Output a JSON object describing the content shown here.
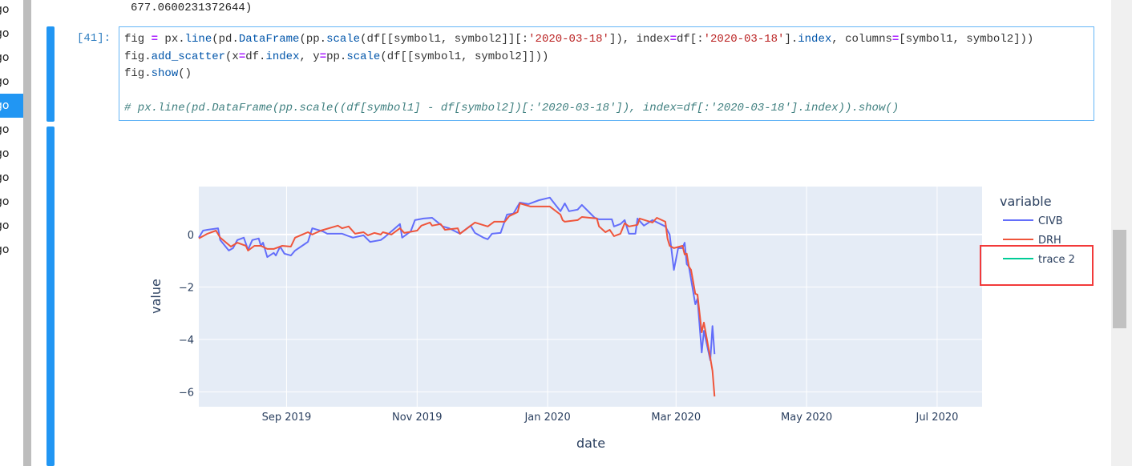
{
  "file_list": {
    "items": [
      "go",
      "go",
      "go",
      "go",
      "go",
      "go",
      "go",
      "go",
      "go",
      "go",
      "go"
    ],
    "selected_index": 4
  },
  "previous_output": "677.0600231372644)",
  "cell": {
    "prompt": "[41]:",
    "code_lines": [
      [
        [
          "fig ",
          ""
        ],
        [
          "=",
          "op"
        ],
        [
          " px.",
          ""
        ],
        [
          "line",
          "fn"
        ],
        [
          "(pd.",
          ""
        ],
        [
          "DataFrame",
          "fn"
        ],
        [
          "(pp.",
          ""
        ],
        [
          "scale",
          "fn"
        ],
        [
          "(df[[symbol1, symbol2]][:",
          ""
        ],
        [
          "'2020-03-18'",
          "str"
        ],
        [
          "]), index",
          ""
        ],
        [
          "=",
          "op"
        ],
        [
          "df[:",
          ""
        ],
        [
          "'2020-03-18'",
          "str"
        ],
        [
          "].",
          ""
        ],
        [
          "index",
          "fn"
        ],
        [
          ", columns",
          ""
        ],
        [
          "=",
          "op"
        ],
        [
          "[symbol1, symbol2]))",
          ""
        ]
      ],
      [
        [
          "fig.",
          ""
        ],
        [
          "add_scatter",
          "fn"
        ],
        [
          "(x",
          ""
        ],
        [
          "=",
          "op"
        ],
        [
          "df.",
          ""
        ],
        [
          "index",
          "fn"
        ],
        [
          ", y",
          ""
        ],
        [
          "=",
          "op"
        ],
        [
          "pp.",
          ""
        ],
        [
          "scale",
          "fn"
        ],
        [
          "(df[[symbol1, symbol2]]))",
          ""
        ]
      ],
      [
        [
          "fig.",
          ""
        ],
        [
          "show",
          "fn"
        ],
        [
          "()",
          ""
        ]
      ],
      [],
      [
        [
          "# px.line(pd.DataFrame(pp.scale((df[symbol1] - df[symbol2])[:'2020-03-18']), index=df[:'2020-03-18'].index)).show()",
          "cm"
        ]
      ]
    ]
  },
  "chart_data": {
    "type": "line",
    "xlabel": "date",
    "ylabel": "value",
    "xlim": [
      "2019-07-22",
      "2020-07-22"
    ],
    "ylim": [
      -6.57,
      1.83
    ],
    "x_ticks": [
      {
        "date": "2019-09-01",
        "label": "Sep 2019"
      },
      {
        "date": "2019-11-01",
        "label": "Nov 2019"
      },
      {
        "date": "2020-01-01",
        "label": "Jan 2020"
      },
      {
        "date": "2020-03-01",
        "label": "Mar 2020"
      },
      {
        "date": "2020-05-01",
        "label": "May 2020"
      },
      {
        "date": "2020-07-01",
        "label": "Jul 2020"
      }
    ],
    "y_ticks": [
      {
        "value": 0,
        "label": "0"
      },
      {
        "value": -2,
        "label": "−2"
      },
      {
        "value": -4,
        "label": "−4"
      },
      {
        "value": -6,
        "label": "−6"
      }
    ],
    "grid": true,
    "plot_bgcolor": "#e5ecf6",
    "legend": {
      "title": "variable",
      "placement": "right"
    },
    "series": [
      {
        "name": "CIVB",
        "color": "#636efa",
        "points": [
          [
            "2019-07-22",
            -0.12
          ],
          [
            "2019-07-24",
            0.15
          ],
          [
            "2019-07-26",
            0.18
          ],
          [
            "2019-07-31",
            0.24
          ],
          [
            "2019-08-01",
            -0.21
          ],
          [
            "2019-08-05",
            -0.61
          ],
          [
            "2019-08-07",
            -0.52
          ],
          [
            "2019-08-09",
            -0.21
          ],
          [
            "2019-08-12",
            -0.12
          ],
          [
            "2019-08-14",
            -0.58
          ],
          [
            "2019-08-16",
            -0.21
          ],
          [
            "2019-08-19",
            -0.15
          ],
          [
            "2019-08-20",
            -0.43
          ],
          [
            "2019-08-21",
            -0.31
          ],
          [
            "2019-08-23",
            -0.86
          ],
          [
            "2019-08-26",
            -0.7
          ],
          [
            "2019-08-27",
            -0.8
          ],
          [
            "2019-08-29",
            -0.46
          ],
          [
            "2019-08-31",
            -0.73
          ],
          [
            "2019-09-03",
            -0.8
          ],
          [
            "2019-09-05",
            -0.61
          ],
          [
            "2019-09-11",
            -0.28
          ],
          [
            "2019-09-13",
            0.24
          ],
          [
            "2019-09-18",
            0.12
          ],
          [
            "2019-09-20",
            0.03
          ],
          [
            "2019-09-25",
            0.03
          ],
          [
            "2019-09-27",
            0.03
          ],
          [
            "2019-10-02",
            -0.12
          ],
          [
            "2019-10-07",
            -0.03
          ],
          [
            "2019-10-10",
            -0.28
          ],
          [
            "2019-10-15",
            -0.21
          ],
          [
            "2019-10-17",
            -0.09
          ],
          [
            "2019-10-24",
            0.4
          ],
          [
            "2019-10-25",
            -0.12
          ],
          [
            "2019-10-29",
            0.12
          ],
          [
            "2019-10-31",
            0.55
          ],
          [
            "2019-11-04",
            0.61
          ],
          [
            "2019-11-08",
            0.64
          ],
          [
            "2019-11-13",
            0.31
          ],
          [
            "2019-11-16",
            0.24
          ],
          [
            "2019-11-21",
            0.03
          ],
          [
            "2019-11-26",
            0.34
          ],
          [
            "2019-11-28",
            0.06
          ],
          [
            "2019-12-02",
            -0.12
          ],
          [
            "2019-12-04",
            -0.18
          ],
          [
            "2019-12-06",
            0.03
          ],
          [
            "2019-12-10",
            0.06
          ],
          [
            "2019-12-13",
            0.76
          ],
          [
            "2019-12-16",
            0.8
          ],
          [
            "2019-12-19",
            1.22
          ],
          [
            "2019-12-23",
            1.16
          ],
          [
            "2019-12-28",
            1.31
          ],
          [
            "2020-01-02",
            1.41
          ],
          [
            "2020-01-07",
            0.89
          ],
          [
            "2020-01-09",
            1.19
          ],
          [
            "2020-01-11",
            0.89
          ],
          [
            "2020-01-15",
            0.95
          ],
          [
            "2020-01-17",
            1.13
          ],
          [
            "2020-01-23",
            0.64
          ],
          [
            "2020-01-25",
            0.58
          ],
          [
            "2020-01-31",
            0.58
          ],
          [
            "2020-02-01",
            0.31
          ],
          [
            "2020-02-04",
            0.4
          ],
          [
            "2020-02-06",
            0.55
          ],
          [
            "2020-02-08",
            0.03
          ],
          [
            "2020-02-11",
            0.03
          ],
          [
            "2020-02-12",
            0.61
          ],
          [
            "2020-02-15",
            0.34
          ],
          [
            "2020-02-19",
            0.55
          ],
          [
            "2020-02-25",
            0.31
          ],
          [
            "2020-02-27",
            0.0
          ],
          [
            "2020-02-29",
            -1.35
          ],
          [
            "2020-03-02",
            -0.52
          ],
          [
            "2020-03-04",
            -0.52
          ],
          [
            "2020-03-05",
            -0.31
          ],
          [
            "2020-03-06",
            -1.13
          ],
          [
            "2020-03-07",
            -1.22
          ],
          [
            "2020-03-10",
            -2.66
          ],
          [
            "2020-03-11",
            -2.45
          ],
          [
            "2020-03-13",
            -4.5
          ],
          [
            "2020-03-14",
            -3.67
          ],
          [
            "2020-03-17",
            -4.8
          ],
          [
            "2020-03-18",
            -3.49
          ],
          [
            "2020-03-19",
            -4.56
          ]
        ]
      },
      {
        "name": "DRH",
        "color": "#ef553b",
        "points": [
          [
            "2019-07-22",
            -0.15
          ],
          [
            "2019-07-26",
            0.03
          ],
          [
            "2019-07-30",
            0.15
          ],
          [
            "2019-08-01",
            -0.12
          ],
          [
            "2019-08-06",
            -0.46
          ],
          [
            "2019-08-09",
            -0.31
          ],
          [
            "2019-08-13",
            -0.43
          ],
          [
            "2019-08-14",
            -0.61
          ],
          [
            "2019-08-17",
            -0.43
          ],
          [
            "2019-08-20",
            -0.43
          ],
          [
            "2019-08-23",
            -0.55
          ],
          [
            "2019-08-26",
            -0.55
          ],
          [
            "2019-08-30",
            -0.43
          ],
          [
            "2019-09-03",
            -0.46
          ],
          [
            "2019-09-05",
            -0.12
          ],
          [
            "2019-09-11",
            0.09
          ],
          [
            "2019-09-13",
            0.0
          ],
          [
            "2019-09-17",
            0.15
          ],
          [
            "2019-09-25",
            0.34
          ],
          [
            "2019-09-27",
            0.24
          ],
          [
            "2019-09-30",
            0.31
          ],
          [
            "2019-10-03",
            0.03
          ],
          [
            "2019-10-07",
            0.09
          ],
          [
            "2019-10-09",
            -0.03
          ],
          [
            "2019-10-12",
            0.06
          ],
          [
            "2019-10-15",
            0.0
          ],
          [
            "2019-10-16",
            0.09
          ],
          [
            "2019-10-20",
            0.0
          ],
          [
            "2019-10-24",
            0.24
          ],
          [
            "2019-10-26",
            0.06
          ],
          [
            "2019-11-01",
            0.15
          ],
          [
            "2019-11-03",
            0.34
          ],
          [
            "2019-11-07",
            0.46
          ],
          [
            "2019-11-08",
            0.34
          ],
          [
            "2019-11-12",
            0.4
          ],
          [
            "2019-11-14",
            0.18
          ],
          [
            "2019-11-20",
            0.24
          ],
          [
            "2019-11-21",
            0.03
          ],
          [
            "2019-11-28",
            0.46
          ],
          [
            "2019-12-04",
            0.31
          ],
          [
            "2019-12-07",
            0.49
          ],
          [
            "2019-12-12",
            0.49
          ],
          [
            "2019-12-14",
            0.7
          ],
          [
            "2019-12-18",
            0.86
          ],
          [
            "2019-12-19",
            1.19
          ],
          [
            "2019-12-24",
            1.07
          ],
          [
            "2019-12-28",
            1.07
          ],
          [
            "2020-01-02",
            1.07
          ],
          [
            "2020-01-07",
            0.76
          ],
          [
            "2020-01-08",
            0.55
          ],
          [
            "2020-01-09",
            0.49
          ],
          [
            "2020-01-15",
            0.55
          ],
          [
            "2020-01-17",
            0.67
          ],
          [
            "2020-01-24",
            0.61
          ],
          [
            "2020-01-25",
            0.31
          ],
          [
            "2020-01-28",
            0.09
          ],
          [
            "2020-01-30",
            0.18
          ],
          [
            "2020-02-01",
            -0.06
          ],
          [
            "2020-02-04",
            0.03
          ],
          [
            "2020-02-06",
            0.43
          ],
          [
            "2020-02-08",
            0.31
          ],
          [
            "2020-02-12",
            0.37
          ],
          [
            "2020-02-13",
            0.61
          ],
          [
            "2020-02-19",
            0.46
          ],
          [
            "2020-02-21",
            0.64
          ],
          [
            "2020-02-25",
            0.49
          ],
          [
            "2020-02-26",
            -0.15
          ],
          [
            "2020-02-27",
            -0.43
          ],
          [
            "2020-02-29",
            -0.52
          ],
          [
            "2020-03-04",
            -0.43
          ],
          [
            "2020-03-05",
            -0.76
          ],
          [
            "2020-03-06",
            -0.73
          ],
          [
            "2020-03-07",
            -1.22
          ],
          [
            "2020-03-08",
            -1.35
          ],
          [
            "2020-03-10",
            -2.26
          ],
          [
            "2020-03-11",
            -2.29
          ],
          [
            "2020-03-13",
            -3.73
          ],
          [
            "2020-03-14",
            -3.36
          ],
          [
            "2020-03-17",
            -4.71
          ],
          [
            "2020-03-18",
            -5.2
          ],
          [
            "2020-03-19",
            -6.18
          ]
        ]
      },
      {
        "name": "trace 2",
        "color": "#00cc96",
        "points": []
      }
    ]
  }
}
